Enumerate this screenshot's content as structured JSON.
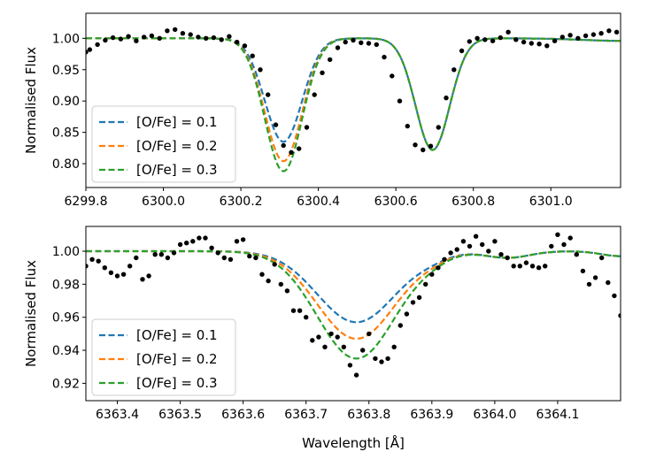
{
  "chart_data": [
    {
      "type": "line+scatter",
      "xlabel": "",
      "ylabel": "Normalised Flux",
      "xlim": [
        6299.8,
        6301.18
      ],
      "ylim": [
        0.762,
        1.04
      ],
      "xticks": [
        6299.8,
        6300.0,
        6300.2,
        6300.4,
        6300.6,
        6300.8,
        6301.0
      ],
      "xtick_labels": [
        "6299.8",
        "6300.0",
        "6300.2",
        "6300.4",
        "6300.6",
        "6300.8",
        "6301.0"
      ],
      "yticks": [
        0.8,
        0.85,
        0.9,
        0.95,
        1.0
      ],
      "ytick_labels": [
        "0.80",
        "0.85",
        "0.90",
        "0.95",
        "1.00"
      ],
      "legend_position": "lower-left",
      "lines": [
        {
          "center": 6300.31,
          "sigma": 0.048,
          "depth": 0.165
        },
        {
          "center": 6300.31,
          "sigma": 0.048,
          "depth": 0.196
        },
        {
          "center": 6300.31,
          "sigma": 0.048,
          "depth": 0.212
        },
        {
          "center": 6300.695,
          "sigma": 0.044,
          "depth": 0.178
        }
      ],
      "series": [
        {
          "name": "[O/Fe] = 0.1",
          "color": "#1f77b4",
          "style": "dashed",
          "line_depths": [
            0.165,
            0.178
          ]
        },
        {
          "name": "[O/Fe] = 0.2",
          "color": "#ff7f0e",
          "style": "dashed",
          "line_depths": [
            0.196,
            0.178
          ]
        },
        {
          "name": "[O/Fe] = 0.3",
          "color": "#2ca02c",
          "style": "dashed",
          "line_depths": [
            0.212,
            0.178
          ]
        }
      ],
      "observed": {
        "color": "#000000",
        "x": [
          6299.8,
          6299.81,
          6299.83,
          6299.85,
          6299.87,
          6299.89,
          6299.91,
          6299.93,
          6299.95,
          6299.97,
          6299.99,
          6300.01,
          6300.03,
          6300.05,
          6300.07,
          6300.09,
          6300.11,
          6300.13,
          6300.15,
          6300.17,
          6300.19,
          6300.21,
          6300.23,
          6300.25,
          6300.27,
          6300.29,
          6300.31,
          6300.33,
          6300.35,
          6300.37,
          6300.39,
          6300.41,
          6300.43,
          6300.45,
          6300.47,
          6300.49,
          6300.51,
          6300.53,
          6300.55,
          6300.57,
          6300.59,
          6300.61,
          6300.63,
          6300.65,
          6300.67,
          6300.69,
          6300.71,
          6300.73,
          6300.75,
          6300.77,
          6300.79,
          6300.81,
          6300.83,
          6300.85,
          6300.87,
          6300.89,
          6300.91,
          6300.93,
          6300.95,
          6300.97,
          6300.99,
          6301.01,
          6301.03,
          6301.05,
          6301.07,
          6301.09,
          6301.11,
          6301.13,
          6301.15,
          6301.17
        ],
        "y": [
          0.978,
          0.982,
          0.99,
          0.997,
          1.001,
          0.999,
          1.003,
          0.996,
          1.002,
          1.004,
          1.0,
          1.012,
          1.014,
          1.008,
          1.006,
          1.002,
          1.0,
          1.001,
          0.998,
          1.003,
          0.994,
          0.988,
          0.972,
          0.95,
          0.91,
          0.862,
          0.829,
          0.818,
          0.824,
          0.858,
          0.91,
          0.945,
          0.966,
          0.985,
          0.994,
          0.997,
          0.993,
          0.992,
          0.99,
          0.97,
          0.94,
          0.9,
          0.86,
          0.83,
          0.822,
          0.828,
          0.858,
          0.905,
          0.95,
          0.98,
          0.995,
          1.0,
          0.998,
          0.996,
          1.001,
          1.01,
          0.998,
          0.994,
          0.992,
          0.991,
          0.988,
          0.996,
          1.002,
          1.005,
          1.0,
          1.004,
          1.006,
          1.008,
          1.012,
          1.01
        ]
      }
    },
    {
      "type": "line+scatter",
      "xlabel": "Wavelength [Å]",
      "ylabel": "Normalised Flux",
      "xlim": [
        6363.35,
        6364.2
      ],
      "ylim": [
        0.9095,
        1.015
      ],
      "xticks": [
        6363.4,
        6363.5,
        6363.6,
        6363.7,
        6363.8,
        6363.9,
        6364.0,
        6364.1
      ],
      "xtick_labels": [
        "6363.4",
        "6363.5",
        "6363.6",
        "6363.7",
        "6363.8",
        "6363.9",
        "6364.0",
        "6364.1"
      ],
      "yticks": [
        0.92,
        0.94,
        0.96,
        0.98,
        1.0
      ],
      "ytick_labels": [
        "0.92",
        "0.94",
        "0.96",
        "0.98",
        "1.00"
      ],
      "legend_position": "lower-left",
      "series": [
        {
          "name": "[O/Fe] = 0.1",
          "color": "#1f77b4",
          "style": "dashed",
          "depth": 0.043
        },
        {
          "name": "[O/Fe] = 0.2",
          "color": "#ff7f0e",
          "style": "dashed",
          "depth": 0.053
        },
        {
          "name": "[O/Fe] = 0.3",
          "color": "#2ca02c",
          "style": "dashed",
          "depth": 0.065
        }
      ],
      "line_center": 6363.78,
      "line_sigma": 0.062,
      "observed": {
        "color": "#000000",
        "x": [
          6363.35,
          6363.36,
          6363.37,
          6363.38,
          6363.39,
          6363.4,
          6363.41,
          6363.42,
          6363.43,
          6363.44,
          6363.45,
          6363.46,
          6363.47,
          6363.48,
          6363.49,
          6363.5,
          6363.51,
          6363.52,
          6363.53,
          6363.54,
          6363.55,
          6363.56,
          6363.57,
          6363.58,
          6363.59,
          6363.6,
          6363.61,
          6363.62,
          6363.63,
          6363.64,
          6363.65,
          6363.66,
          6363.67,
          6363.68,
          6363.69,
          6363.7,
          6363.71,
          6363.72,
          6363.73,
          6363.74,
          6363.75,
          6363.76,
          6363.77,
          6363.78,
          6363.79,
          6363.8,
          6363.81,
          6363.82,
          6363.83,
          6363.84,
          6363.85,
          6363.86,
          6363.87,
          6363.88,
          6363.89,
          6363.9,
          6363.91,
          6363.92,
          6363.93,
          6363.94,
          6363.95,
          6363.96,
          6363.97,
          6363.98,
          6363.99,
          6364.0,
          6364.01,
          6364.02,
          6364.03,
          6364.04,
          6364.05,
          6364.06,
          6364.07,
          6364.08,
          6364.09,
          6364.1,
          6364.11,
          6364.12,
          6364.13,
          6364.14,
          6364.15,
          6364.16,
          6364.17,
          6364.18,
          6364.19,
          6364.2
        ],
        "y": [
          0.991,
          0.995,
          0.994,
          0.99,
          0.987,
          0.985,
          0.986,
          0.991,
          0.996,
          0.983,
          0.985,
          0.998,
          0.998,
          0.996,
          0.999,
          1.004,
          1.005,
          1.006,
          1.008,
          1.008,
          1.002,
          0.999,
          0.996,
          0.995,
          1.006,
          1.007,
          0.997,
          0.996,
          0.986,
          0.982,
          0.992,
          0.98,
          0.976,
          0.964,
          0.964,
          0.96,
          0.946,
          0.948,
          0.942,
          0.95,
          0.948,
          0.942,
          0.931,
          0.925,
          0.94,
          0.95,
          0.935,
          0.933,
          0.935,
          0.942,
          0.955,
          0.962,
          0.969,
          0.972,
          0.98,
          0.986,
          0.99,
          0.995,
          0.999,
          1.001,
          1.006,
          1.003,
          1.009,
          1.004,
          1.0,
          1.006,
          0.998,
          0.996,
          0.991,
          0.991,
          0.993,
          0.991,
          0.99,
          0.991,
          1.003,
          1.01,
          1.004,
          1.008,
          0.998,
          0.988,
          0.98,
          0.984,
          0.996,
          0.981,
          0.973,
          0.961
        ]
      }
    }
  ]
}
